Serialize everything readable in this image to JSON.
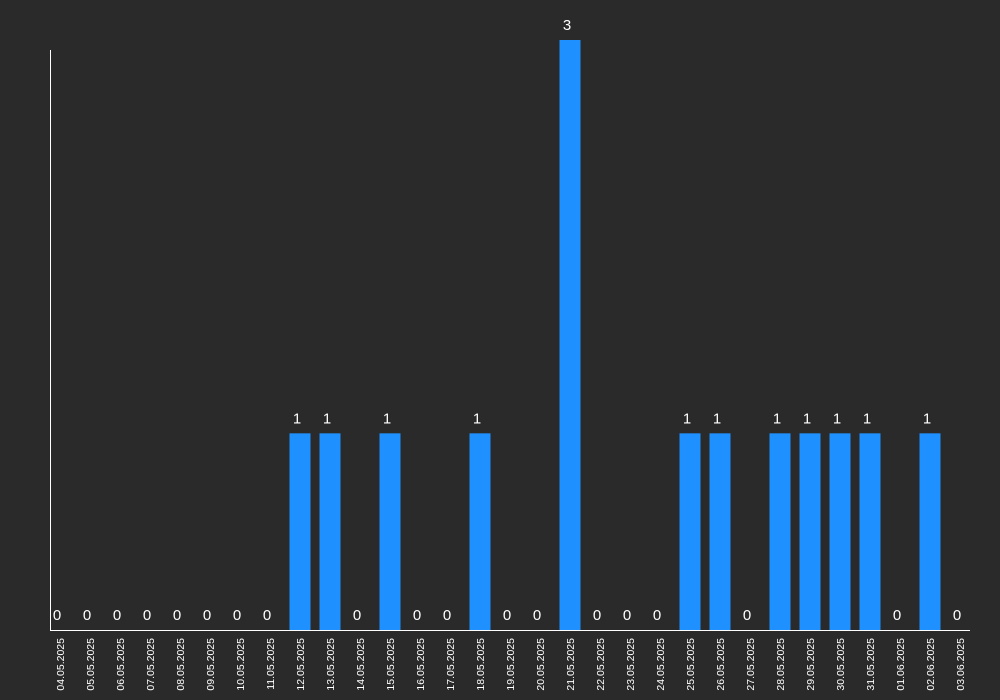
{
  "chart_data": {
    "type": "bar",
    "categories": [
      "04.05.2025",
      "05.05.2025",
      "06.05.2025",
      "07.05.2025",
      "08.05.2025",
      "09.05.2025",
      "10.05.2025",
      "11.05.2025",
      "12.05.2025",
      "13.05.2025",
      "14.05.2025",
      "15.05.2025",
      "16.05.2025",
      "17.05.2025",
      "18.05.2025",
      "19.05.2025",
      "20.05.2025",
      "21.05.2025",
      "22.05.2025",
      "23.05.2025",
      "24.05.2025",
      "25.05.2025",
      "26.05.2025",
      "27.05.2025",
      "28.05.2025",
      "29.05.2025",
      "30.05.2025",
      "31.05.2025",
      "01.06.2025",
      "02.06.2025",
      "03.06.2025"
    ],
    "values": [
      0,
      0,
      0,
      0,
      0,
      0,
      0,
      0,
      1,
      1,
      0,
      1,
      0,
      0,
      1,
      0,
      0,
      3,
      0,
      0,
      0,
      1,
      1,
      0,
      1,
      1,
      1,
      1,
      0,
      1,
      0
    ],
    "ylim": [
      0,
      3
    ],
    "grid": false,
    "data_labels": true,
    "colors": {
      "background": "#2a2a2a",
      "bar": "#1e90ff",
      "axis": "#ffffff",
      "text": "#ffffff"
    }
  }
}
